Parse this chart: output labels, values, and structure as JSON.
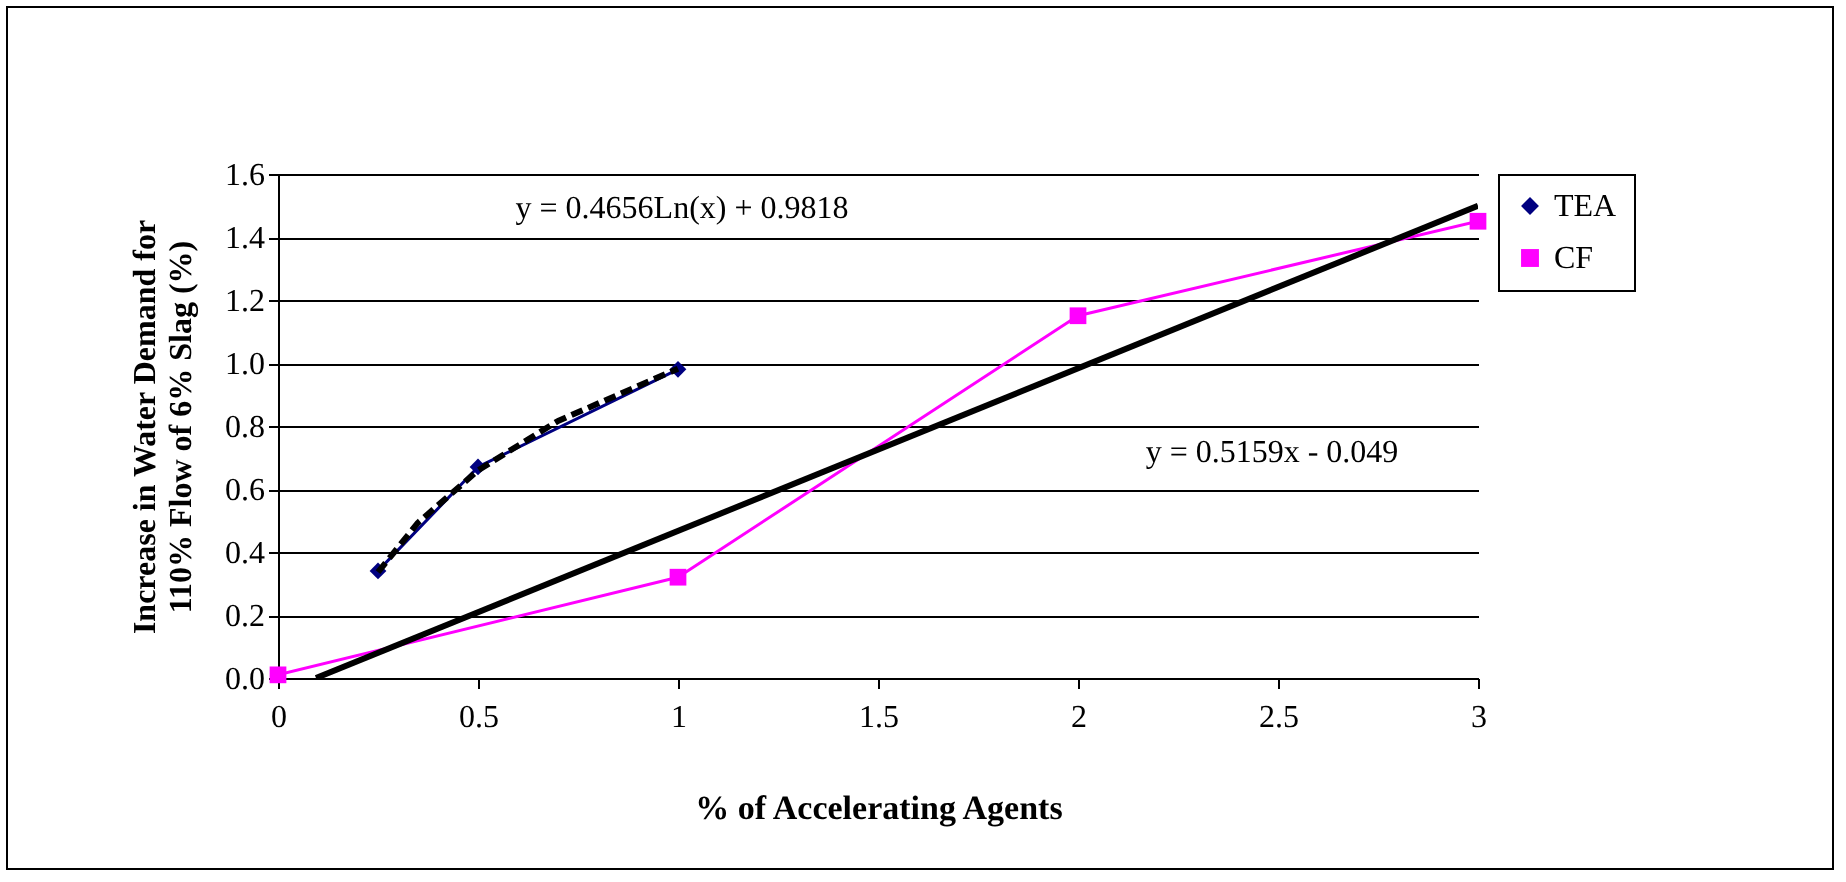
{
  "chart_data": {
    "type": "line",
    "xlabel": "% of Accelerating Agents",
    "ylabel": "Increase in Water Demand for\n110% Flow of 6% Slag (%)",
    "xlim": [
      0,
      3
    ],
    "xticks": [
      0,
      0.5,
      1,
      1.5,
      2,
      2.5,
      3
    ],
    "ylim": [
      0,
      1.6
    ],
    "yticks": [
      {
        "value": 0,
        "label": "0.0"
      },
      {
        "value": 0.2,
        "label": "0.2"
      },
      {
        "value": 0.4,
        "label": "0.4"
      },
      {
        "value": 0.6,
        "label": "0.6"
      },
      {
        "value": 0.8,
        "label": "0.8"
      },
      {
        "value": 1,
        "label": "1.0"
      },
      {
        "value": 1.2,
        "label": "1.2"
      },
      {
        "value": 1.4,
        "label": "1.4"
      },
      {
        "value": 1.6,
        "label": "1.6"
      }
    ],
    "grid": "y",
    "legend": "right",
    "series": [
      {
        "name": "TEA",
        "color": "#000080",
        "marker": "diamond",
        "x": [
          0.25,
          0.5,
          1
        ],
        "values": [
          0.34,
          0.67,
          0.98
        ]
      },
      {
        "name": "CF",
        "color": "#ff00ff",
        "marker": "square",
        "x": [
          0,
          1,
          2,
          3
        ],
        "values": [
          0.01,
          0.32,
          1.15,
          1.45
        ]
      },
      {
        "color": "#000000",
        "marker": "none",
        "line_style": "dashed",
        "x": [
          0.25,
          0.35,
          0.5,
          0.7,
          1
        ],
        "values": [
          0.336,
          0.493,
          0.659,
          0.816,
          0.982
        ]
      },
      {
        "color": "#000000",
        "marker": "none",
        "line_style": "solid",
        "x": [
          0.095,
          3
        ],
        "values": [
          0,
          1.499
        ]
      }
    ],
    "annotations": [
      "y = 0.4656Ln(x) + 0.9818",
      "y = 0.5159x - 0.049"
    ]
  }
}
